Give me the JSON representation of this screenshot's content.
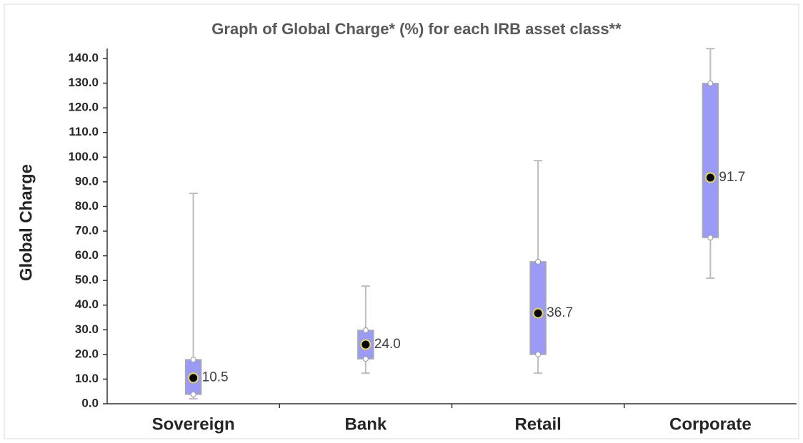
{
  "chart_data": {
    "type": "box",
    "title": "Graph of Global Charge* (%) for each IRB asset class**",
    "y_label": "Global Charge",
    "categories": [
      "Sovereign",
      "Bank",
      "Retail",
      "Corporate"
    ],
    "min": [
      2,
      12.4,
      12.4,
      50.9
    ],
    "q1": [
      3.8,
      18.2,
      20,
      67.4
    ],
    "mean": [
      10.5,
      24.0,
      36.7,
      91.7
    ],
    "value_labels": [
      "10.5",
      "24.0",
      "36.7",
      "91.7"
    ],
    "q3": [
      17.9,
      29.8,
      57.6,
      129.9
    ],
    "max": [
      85.3,
      47.7,
      98.6,
      144
    ],
    "color": "#9b9bf7",
    "ylim": [
      0,
      144
    ],
    "yticks": [
      {
        "value": 0,
        "label": "0.0"
      },
      {
        "value": 10,
        "label": "10.0"
      },
      {
        "value": 20,
        "label": "20.0"
      },
      {
        "value": 30,
        "label": "30.0"
      },
      {
        "value": 40,
        "label": "40.0"
      },
      {
        "value": 50,
        "label": "50.0"
      },
      {
        "value": 60,
        "label": "60.0"
      },
      {
        "value": 70,
        "label": "70.0"
      },
      {
        "value": 80,
        "label": "80.0"
      },
      {
        "value": 90,
        "label": "90.0"
      },
      {
        "value": 100,
        "label": "100.0"
      },
      {
        "value": 110,
        "label": "110.0"
      },
      {
        "value": 120,
        "label": "120.0"
      },
      {
        "value": 130,
        "label": "130.0"
      },
      {
        "value": 140,
        "label": "140.0"
      }
    ],
    "grid": false
  }
}
